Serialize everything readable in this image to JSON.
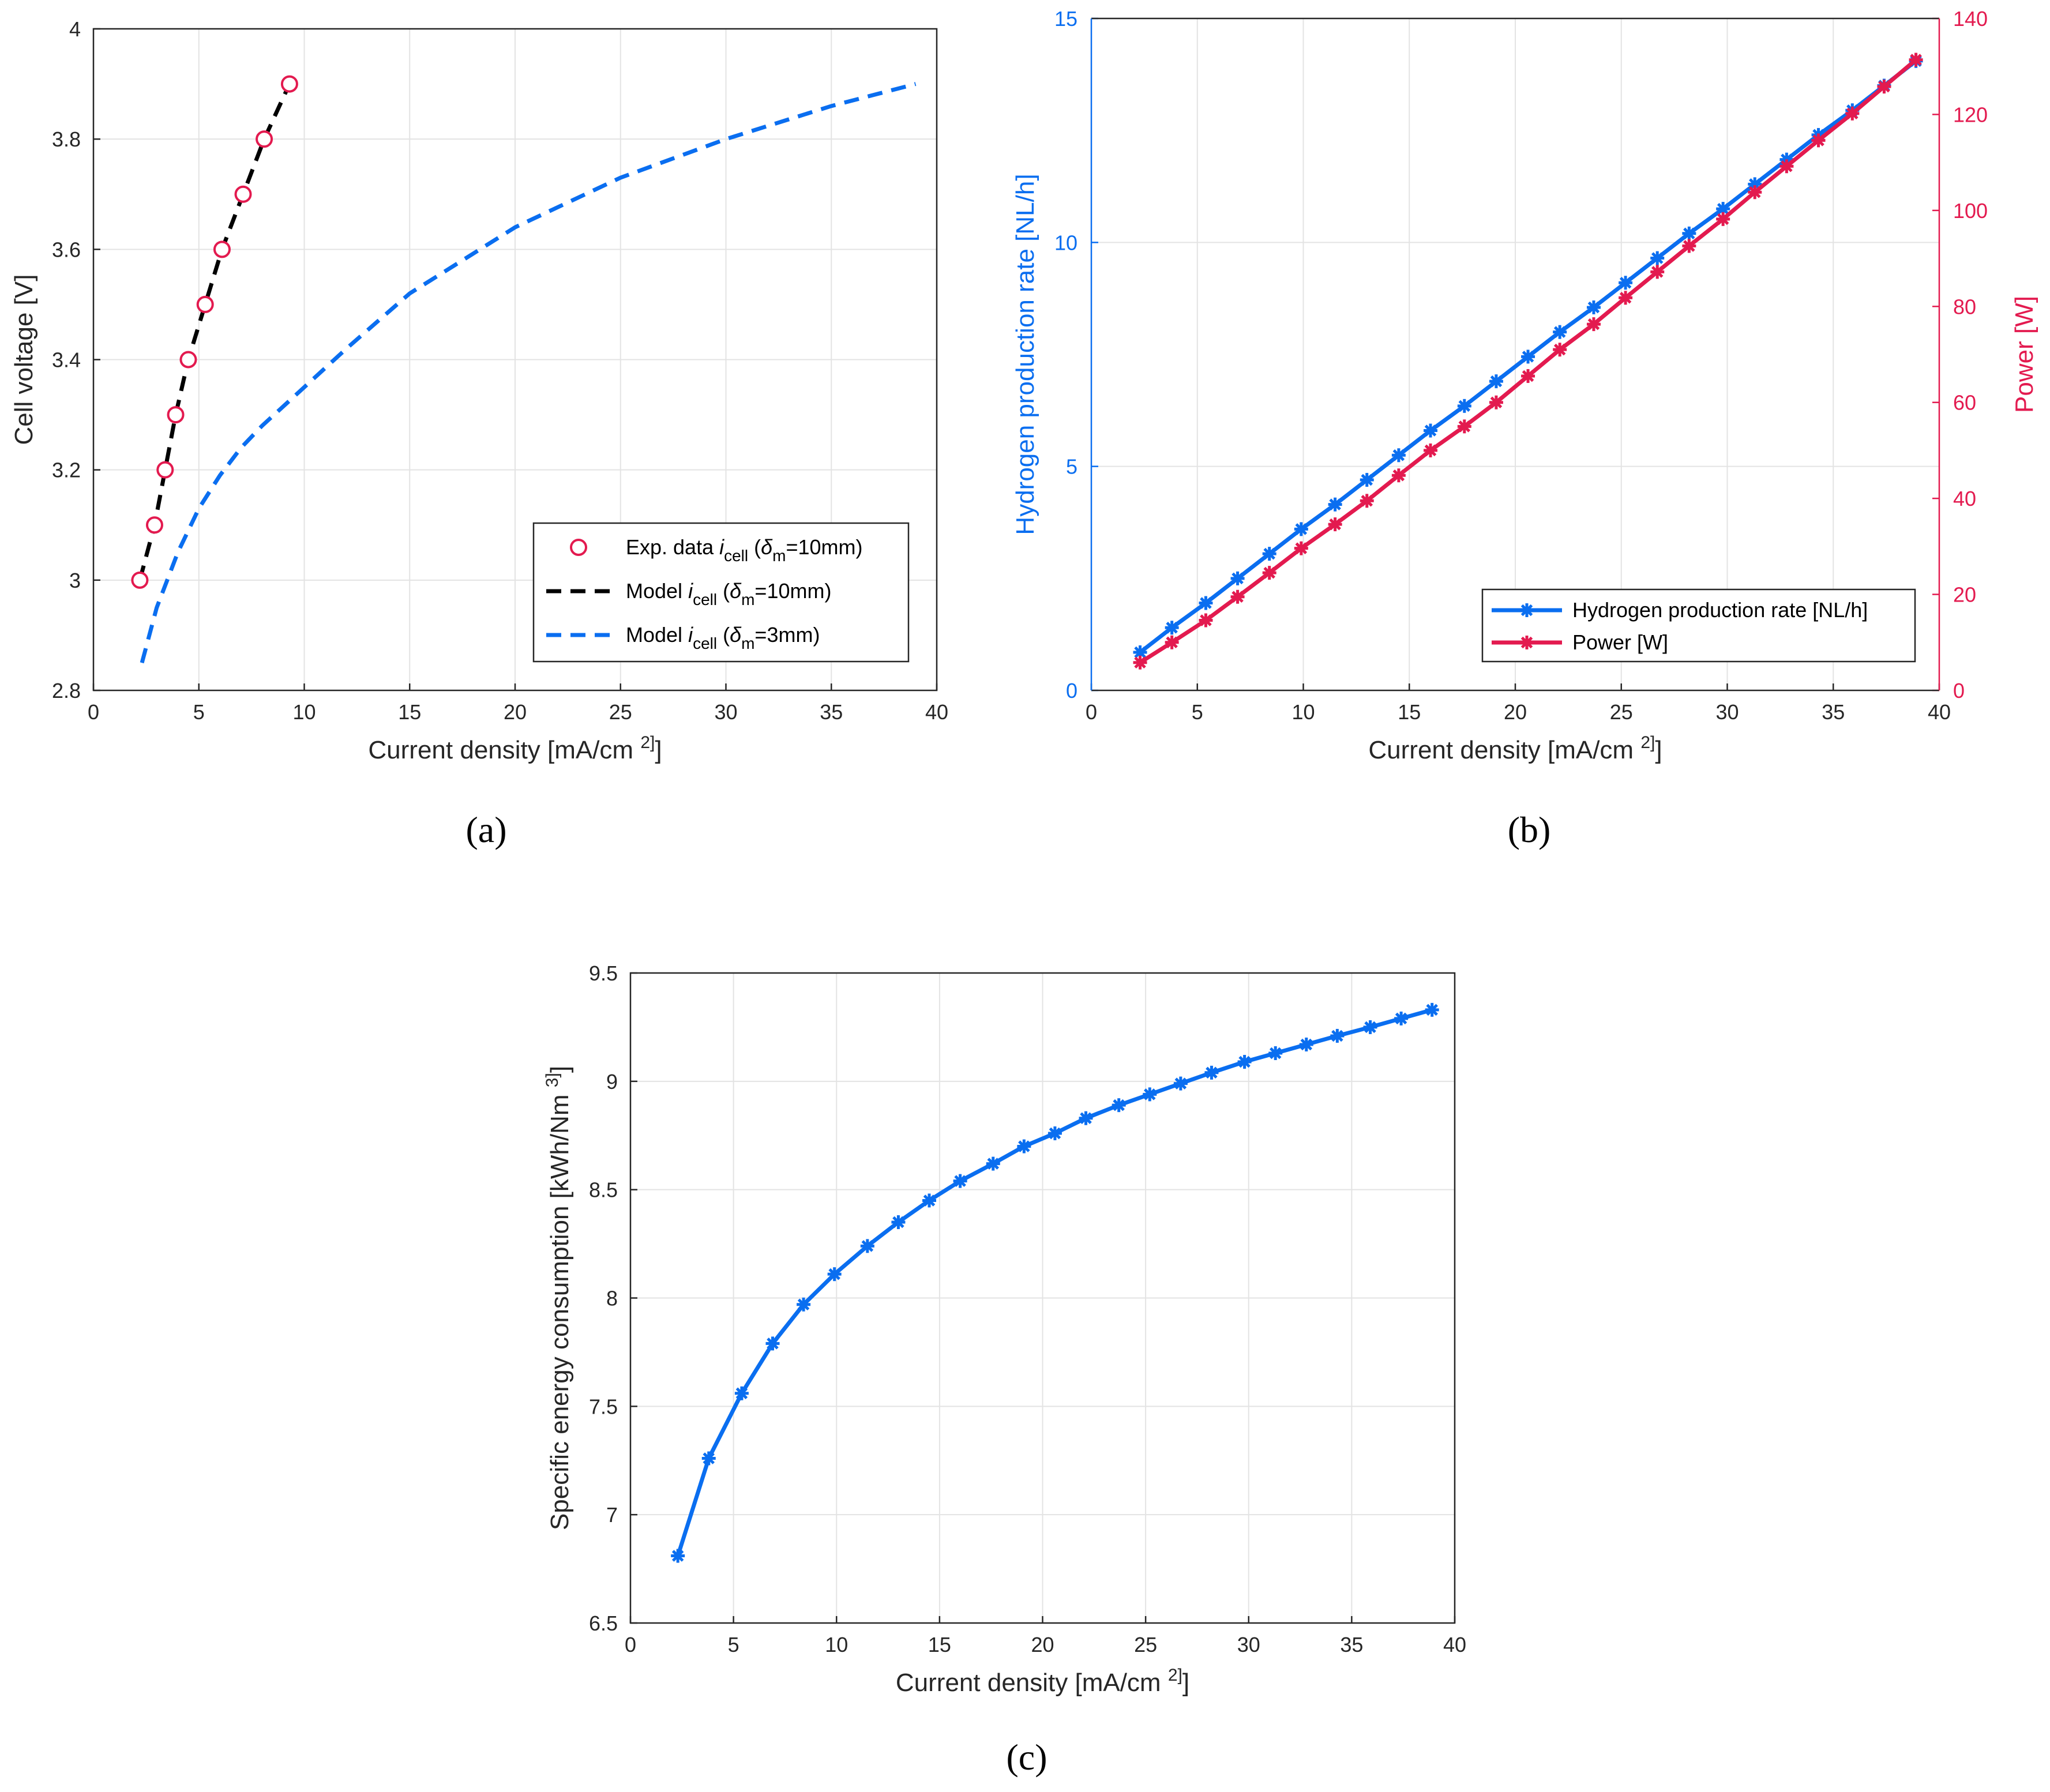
{
  "colors": {
    "blue": "#0a6ef0",
    "red": "#e31a4f",
    "black": "#000000",
    "axis": "#262626",
    "grid": "#e3e3e3"
  },
  "chart_data": [
    {
      "id": "a",
      "type": "line",
      "caption": "(a)",
      "xlabel": "Current density [mA/cm 2]",
      "ylabel": "Cell voltage [V]",
      "xlim": [
        0,
        40
      ],
      "ylim": [
        2.8,
        4
      ],
      "xticks": [
        "0",
        "5",
        "10",
        "15",
        "20",
        "25",
        "30",
        "35",
        "40"
      ],
      "yticks": [
        "2.8",
        "3",
        "3.2",
        "3.4",
        "3.6",
        "3.8",
        "4"
      ],
      "grid": true,
      "legend_position": "bottom-right",
      "legend": [
        {
          "text": "Exp. data i cell (δm=10mm)",
          "main": "Exp. data",
          "i": "i",
          "sub": "cell",
          "delta": "δ",
          "dsub": "m",
          "rest": "=10mm)"
        },
        {
          "text": "Model i cell (δm=10mm)",
          "main": "Model",
          "i": "i",
          "sub": "cell",
          "delta": "δ",
          "dsub": "m",
          "rest": "=10mm)"
        },
        {
          "text": "Model i cell (δm=3mm)",
          "main": "Model",
          "i": "i",
          "sub": "cell",
          "delta": "δ",
          "dsub": "m",
          "rest": "=3mm)"
        }
      ],
      "series": [
        {
          "name": "Exp. data (δm=10mm)",
          "style": "circles",
          "color": "red",
          "x": [
            2.2,
            2.9,
            3.4,
            3.9,
            4.5,
            5.3,
            6.1,
            7.1,
            8.1,
            9.3
          ],
          "y": [
            3.0,
            3.1,
            3.2,
            3.3,
            3.4,
            3.5,
            3.6,
            3.7,
            3.8,
            3.9
          ]
        },
        {
          "name": "Model (δm=10mm)",
          "style": "dashed",
          "color": "black",
          "x": [
            2.2,
            2.9,
            3.4,
            3.9,
            4.5,
            5.3,
            6.1,
            7.1,
            8.1,
            9.3
          ],
          "y": [
            3.0,
            3.1,
            3.2,
            3.3,
            3.4,
            3.5,
            3.6,
            3.7,
            3.8,
            3.9
          ]
        },
        {
          "name": "Model (δm=3mm)",
          "style": "dashed",
          "color": "blue",
          "x": [
            2.3,
            3,
            4,
            5,
            6,
            7,
            8,
            10,
            12,
            15,
            20,
            25,
            30,
            35,
            39
          ],
          "y": [
            2.85,
            2.95,
            3.05,
            3.13,
            3.19,
            3.24,
            3.28,
            3.35,
            3.42,
            3.52,
            3.64,
            3.73,
            3.8,
            3.86,
            3.9
          ]
        }
      ]
    },
    {
      "id": "b",
      "type": "line",
      "caption": "(b)",
      "xlabel": "Current density [mA/cm 2]",
      "ylabel_left": "Hydrogen production rate [NL/h]",
      "ylabel_right": "Power [W]",
      "xlim": [
        0,
        40
      ],
      "ylim_left": [
        0,
        15
      ],
      "ylim_right": [
        0,
        140
      ],
      "xticks": [
        "0",
        "5",
        "10",
        "15",
        "20",
        "25",
        "30",
        "35",
        "40"
      ],
      "yticks_left": [
        "0",
        "5",
        "10",
        "15"
      ],
      "yticks_right": [
        "0",
        "20",
        "40",
        "60",
        "80",
        "100",
        "120",
        "140"
      ],
      "grid": true,
      "legend_position": "bottom-right",
      "legend": [
        "Hydrogen production rate [NL/h]",
        "Power [W]"
      ],
      "series": [
        {
          "name": "Hydrogen production rate [NL/h]",
          "axis": "left",
          "color": "blue",
          "marker": "asterisk",
          "x": [
            2.3,
            3.8,
            5.4,
            6.9,
            8.4,
            9.9,
            11.5,
            13.0,
            14.5,
            16.0,
            17.6,
            19.1,
            20.6,
            22.1,
            23.7,
            25.2,
            26.7,
            28.2,
            29.8,
            31.3,
            32.8,
            34.3,
            35.9,
            37.4,
            38.9
          ],
          "y": [
            0.85,
            1.4,
            1.95,
            2.5,
            3.05,
            3.6,
            4.15,
            4.7,
            5.25,
            5.8,
            6.35,
            6.9,
            7.45,
            8.0,
            8.55,
            9.1,
            9.65,
            10.2,
            10.75,
            11.3,
            11.85,
            12.4,
            12.95,
            13.5,
            14.05
          ]
        },
        {
          "name": "Power [W]",
          "axis": "right",
          "color": "red",
          "marker": "asterisk",
          "x": [
            2.3,
            3.8,
            5.4,
            6.9,
            8.4,
            9.9,
            11.5,
            13.0,
            14.5,
            16.0,
            17.6,
            19.1,
            20.6,
            22.1,
            23.7,
            25.2,
            26.7,
            28.2,
            29.8,
            31.3,
            32.8,
            34.3,
            35.9,
            37.4,
            38.9
          ],
          "y": [
            5.8,
            10.0,
            14.6,
            19.5,
            24.5,
            29.6,
            34.6,
            39.5,
            44.8,
            50.0,
            55.0,
            60.0,
            65.5,
            71.0,
            76.3,
            81.8,
            87.2,
            92.6,
            98.2,
            103.8,
            109.2,
            114.6,
            120.2,
            125.8,
            131.4
          ]
        }
      ]
    },
    {
      "id": "c",
      "type": "line",
      "caption": "(c)",
      "xlabel": "Current density [mA/cm 2]",
      "ylabel": "Specific energy consumption [kWh/Nm 3]",
      "xlim": [
        0,
        40
      ],
      "ylim": [
        6.5,
        9.5
      ],
      "xticks": [
        "0",
        "5",
        "10",
        "15",
        "20",
        "25",
        "30",
        "35",
        "40"
      ],
      "yticks": [
        "6.5",
        "7",
        "7.5",
        "8",
        "8.5",
        "9",
        "9.5"
      ],
      "grid": true,
      "series": [
        {
          "name": "Specific energy consumption",
          "color": "blue",
          "marker": "asterisk",
          "x": [
            2.3,
            3.8,
            5.4,
            6.9,
            8.4,
            9.9,
            11.5,
            13.0,
            14.5,
            16.0,
            17.6,
            19.1,
            20.6,
            22.1,
            23.7,
            25.2,
            26.7,
            28.2,
            29.8,
            31.3,
            32.8,
            34.3,
            35.9,
            37.4,
            38.9
          ],
          "y": [
            6.81,
            7.26,
            7.56,
            7.79,
            7.97,
            8.11,
            8.24,
            8.35,
            8.45,
            8.54,
            8.62,
            8.7,
            8.76,
            8.83,
            8.89,
            8.94,
            8.99,
            9.04,
            9.09,
            9.13,
            9.17,
            9.21,
            9.25,
            9.29,
            9.33
          ]
        }
      ]
    }
  ]
}
